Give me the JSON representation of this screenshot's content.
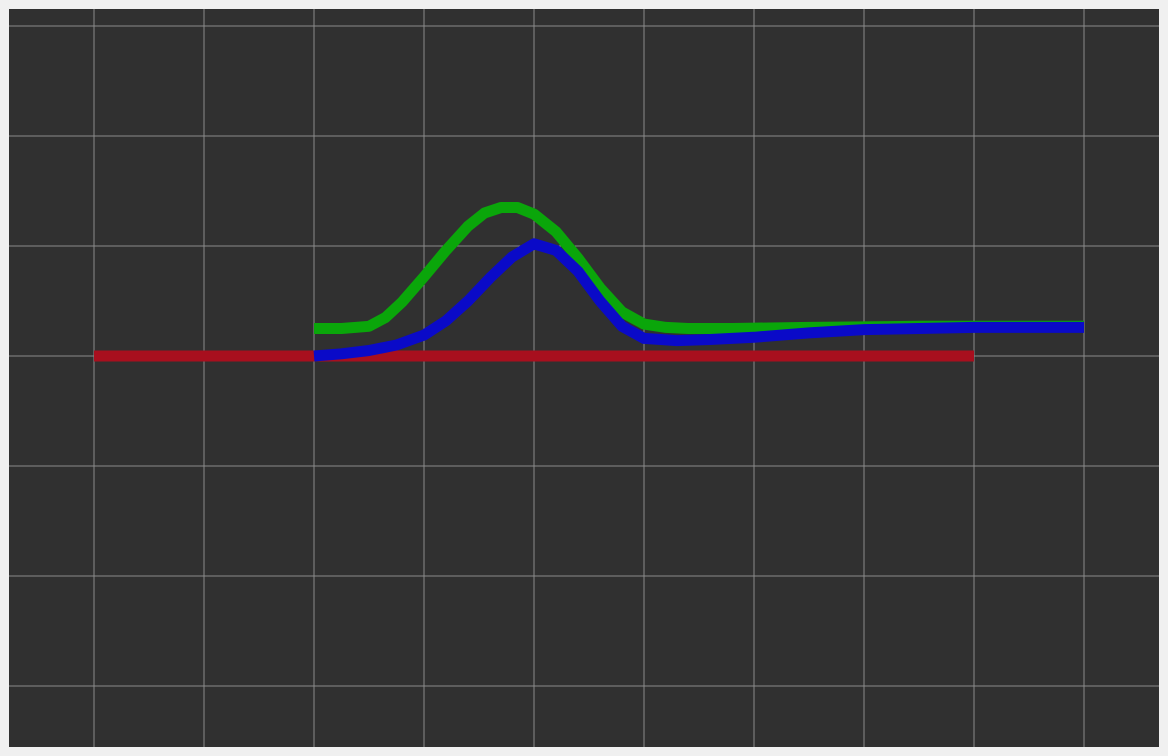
{
  "colors": {
    "page_bg": "#f0f0f0",
    "canvas_bg": "#303030",
    "grid": "#8a8a8a",
    "series_red": "#a80f1e",
    "series_green": "#0aa60a",
    "series_blue": "#0a0ac8"
  },
  "chart_data": {
    "type": "line",
    "title": "",
    "xlabel": "",
    "ylabel": "",
    "grid": true,
    "legend": "none",
    "xlim": [
      -0.8,
      9.7
    ],
    "ylim": [
      -3.6,
      3.1
    ],
    "series": [
      {
        "color": "#a80f1e",
        "x": [
          0,
          8
        ],
        "y": [
          0,
          0
        ]
      },
      {
        "color": "#0aa60a",
        "x": [
          2.0,
          2.25,
          2.5,
          2.65,
          2.8,
          3.0,
          3.2,
          3.4,
          3.55,
          3.7,
          3.85,
          4.0,
          4.2,
          4.4,
          4.6,
          4.8,
          5.0,
          5.2,
          5.4,
          5.8,
          6.5,
          7.5,
          8.5,
          9.0
        ],
        "y": [
          0.25,
          0.25,
          0.27,
          0.35,
          0.49,
          0.72,
          0.96,
          1.18,
          1.3,
          1.35,
          1.35,
          1.29,
          1.13,
          0.89,
          0.62,
          0.4,
          0.29,
          0.26,
          0.25,
          0.25,
          0.26,
          0.27,
          0.27,
          0.27
        ]
      },
      {
        "color": "#0a0ac8",
        "x": [
          2.0,
          2.25,
          2.5,
          2.75,
          3.0,
          3.2,
          3.4,
          3.6,
          3.8,
          4.0,
          4.2,
          4.4,
          4.6,
          4.8,
          5.0,
          5.3,
          5.6,
          6.0,
          6.5,
          7.0,
          7.5,
          8.0,
          8.5,
          9.0
        ],
        "y": [
          0.0,
          0.02,
          0.05,
          0.1,
          0.19,
          0.32,
          0.5,
          0.71,
          0.9,
          1.02,
          0.96,
          0.77,
          0.5,
          0.27,
          0.16,
          0.14,
          0.15,
          0.17,
          0.21,
          0.24,
          0.25,
          0.26,
          0.26,
          0.26
        ]
      }
    ]
  }
}
